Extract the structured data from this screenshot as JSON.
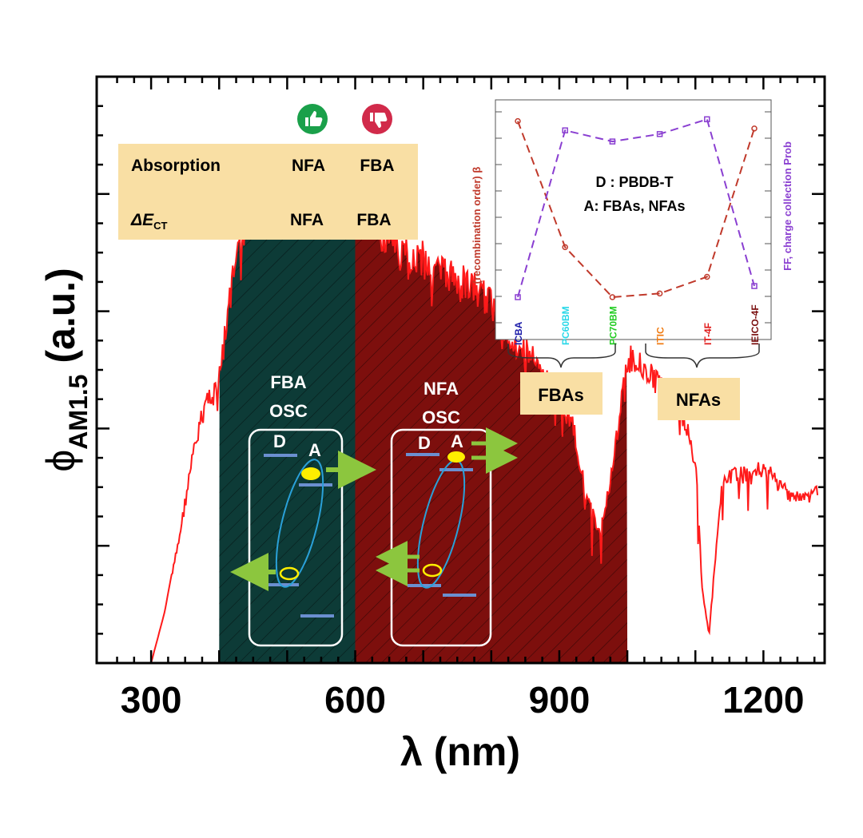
{
  "chart_data": [
    {
      "type": "area",
      "xlabel": "λ (nm)",
      "ylabel_symbol": "ϕ",
      "ylabel_subscript": "AM1.5",
      "ylabel_unit": "(a.u.)",
      "xlim": [
        220,
        1290
      ],
      "ylim": [
        0,
        1.0
      ],
      "x_ticks": [
        300,
        600,
        900,
        1200
      ],
      "series": [
        {
          "x": [
            300,
            320,
            340,
            360,
            380,
            400,
            420,
            440,
            460,
            480,
            500,
            520,
            540,
            560,
            580,
            600,
            620,
            640,
            660,
            680,
            700,
            720,
            740,
            760,
            780,
            800,
            820,
            840,
            860,
            880,
            900,
            920,
            940,
            960,
            980,
            1000,
            1020,
            1040,
            1060,
            1080,
            1100,
            1110,
            1120,
            1130,
            1140,
            1160,
            1180,
            1200,
            1220,
            1240,
            1260,
            1280
          ],
          "y": [
            0.0,
            0.09,
            0.22,
            0.37,
            0.48,
            0.52,
            0.7,
            0.8,
            0.84,
            0.87,
            0.87,
            0.89,
            0.88,
            0.86,
            0.84,
            0.81,
            0.82,
            0.79,
            0.76,
            0.75,
            0.74,
            0.72,
            0.71,
            0.7,
            0.68,
            0.66,
            0.61,
            0.58,
            0.56,
            0.52,
            0.48,
            0.44,
            0.3,
            0.24,
            0.37,
            0.56,
            0.55,
            0.52,
            0.5,
            0.46,
            0.37,
            0.14,
            0.05,
            0.2,
            0.33,
            0.35,
            0.34,
            0.36,
            0.33,
            0.31,
            0.3,
            0.32
          ]
        }
      ],
      "bands": [
        {
          "from": 400,
          "to": 600,
          "color": "#0d3b37"
        },
        {
          "from": 600,
          "to": 1000,
          "color": "#7d0f0d"
        }
      ],
      "line_color": "#ff1a1a"
    },
    {
      "type": "line",
      "categories": [
        "ICBA",
        "PC60BM",
        "PC70BM",
        "ITIC",
        "IT-4F",
        "IEICO-4F"
      ],
      "category_colors": [
        "#1a1aa8",
        "#2ad8e8",
        "#22cc22",
        "#f07a10",
        "#e01818",
        "#7a0f0f"
      ],
      "series": [
        {
          "name": "(recombination order) β",
          "values": [
            0.95,
            0.27,
            0.0,
            0.02,
            0.11,
            0.91
          ],
          "color": "#c0392b"
        },
        {
          "name": "FF, charge collection Prob",
          "values": [
            0.0,
            0.9,
            0.84,
            0.88,
            0.96,
            0.06
          ],
          "color": "#8a3fd1"
        }
      ],
      "annotation_line1": "D : PBDB-T",
      "annotation_line2": "A: FBAs, NFAs",
      "groups": [
        "FBAs",
        "NFAs"
      ]
    }
  ],
  "legend_box": {
    "rows": [
      {
        "label": "Absorption",
        "label_sub": "",
        "col1": "NFA",
        "col2": "FBA"
      },
      {
        "label": "ΔE",
        "label_sub": "CT",
        "col1": "NFA",
        "col2": "FBA"
      }
    ],
    "thumbs_up_icon": "thumbs-up-icon",
    "thumbs_down_icon": "thumbs-down-icon",
    "up_color": "#1aa04a",
    "down_color": "#d12a4a"
  },
  "osc_labels": {
    "fba_line1": "FBA",
    "fba_line2": "OSC",
    "nfa_line1": "NFA",
    "nfa_line2": "OSC",
    "donor": "D",
    "acceptor": "A"
  }
}
